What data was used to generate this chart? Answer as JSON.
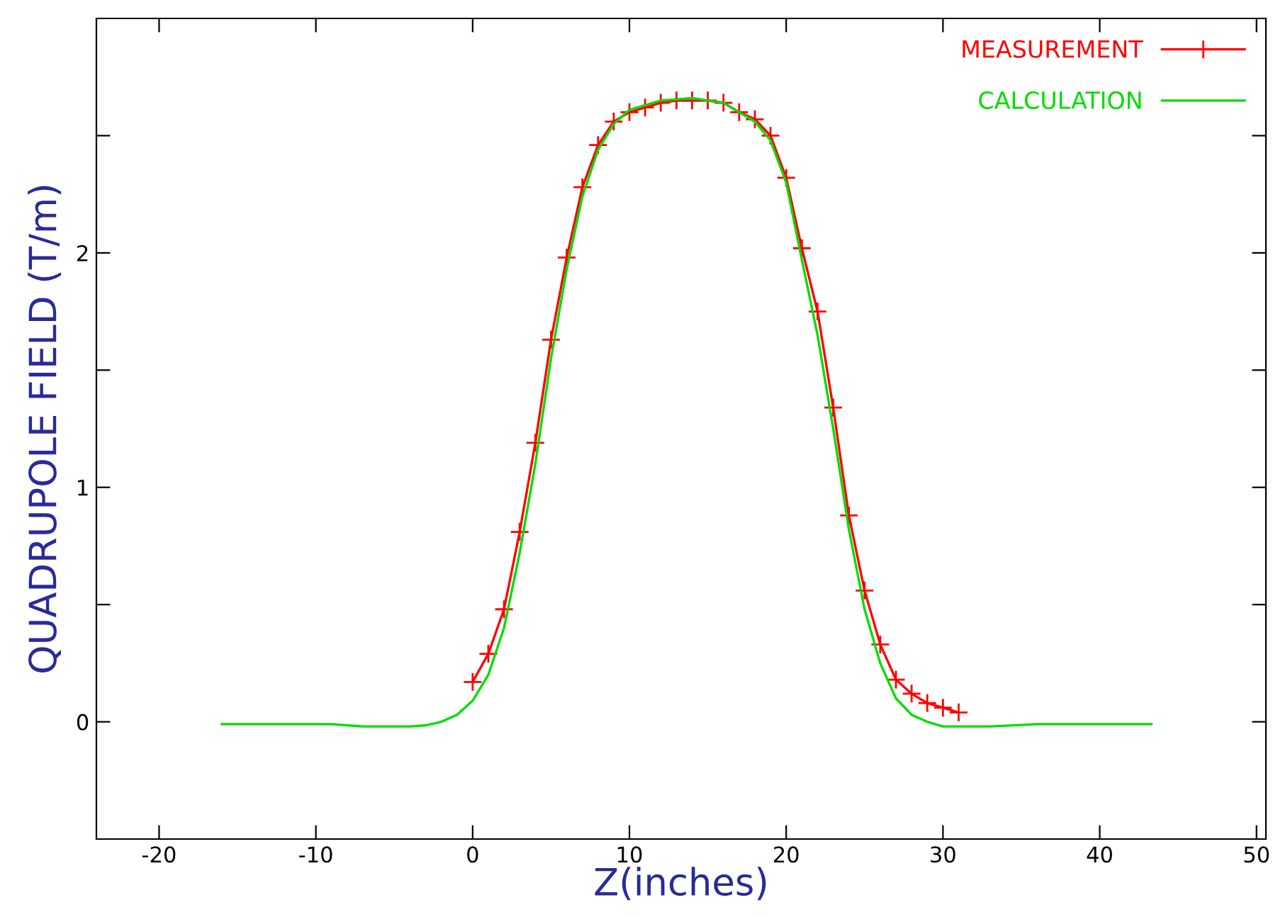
{
  "chart_data": {
    "type": "line",
    "xlabel": "Z(inches)",
    "ylabel": "QUADRUPOLE FIELD (T/m)",
    "xlim": [
      -24,
      50.6
    ],
    "xticks": [
      -20,
      -10,
      0,
      10,
      20,
      30,
      40,
      50
    ],
    "ylim": [
      -0.5,
      3
    ],
    "yticks": [
      0,
      {
        "value": 0.5,
        "label": null
      },
      1,
      {
        "value": 1.5,
        "label": null
      },
      2,
      {
        "value": 2.5,
        "label": null
      }
    ],
    "grid": false,
    "legend": "top right",
    "series": [
      {
        "name": "MEASUREMENT",
        "color": "#ff0000",
        "marker": "cross",
        "x": [
          0,
          1,
          2,
          3,
          4,
          5,
          6,
          7,
          8,
          9,
          10,
          11,
          12,
          13,
          14,
          15,
          16,
          17,
          18,
          19,
          20,
          21,
          22,
          23,
          24,
          25,
          26,
          27,
          28,
          29,
          30,
          31
        ],
        "values": [
          0.17,
          0.29,
          0.48,
          0.81,
          1.19,
          1.63,
          1.98,
          2.28,
          2.46,
          2.56,
          2.6,
          2.62,
          2.64,
          2.65,
          2.65,
          2.65,
          2.64,
          2.6,
          2.57,
          2.5,
          2.32,
          2.02,
          1.75,
          1.34,
          0.88,
          0.56,
          0.33,
          0.18,
          0.12,
          0.08,
          0.06,
          0.04
        ]
      },
      {
        "name": "CALCULATION",
        "color": "#00dd00",
        "marker": "none",
        "x": [
          -16,
          -9,
          -7,
          -4,
          -3,
          -2,
          -1,
          0,
          1,
          2,
          3,
          4,
          5,
          6,
          7,
          8,
          9,
          10,
          12,
          14,
          16,
          18,
          19,
          20,
          21,
          22,
          23,
          24,
          25,
          26,
          27,
          28,
          29,
          30,
          33,
          36,
          43.3
        ],
        "values": [
          -0.01,
          -0.01,
          -0.02,
          -0.02,
          -0.015,
          0.0,
          0.03,
          0.09,
          0.2,
          0.4,
          0.72,
          1.1,
          1.55,
          1.93,
          2.24,
          2.44,
          2.55,
          2.61,
          2.65,
          2.66,
          2.64,
          2.56,
          2.48,
          2.3,
          1.97,
          1.65,
          1.25,
          0.82,
          0.48,
          0.25,
          0.1,
          0.03,
          0.0,
          -0.02,
          -0.02,
          -0.01,
          -0.01
        ]
      }
    ]
  }
}
